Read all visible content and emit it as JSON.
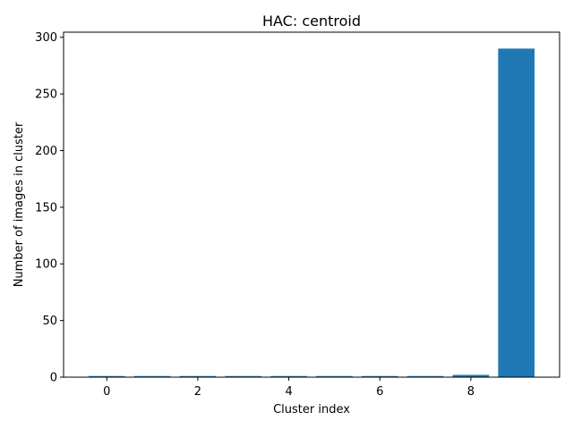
{
  "chart_data": {
    "type": "bar",
    "title": "HAC: centroid",
    "xlabel": "Cluster index",
    "ylabel": "Number of images in cluster",
    "x": [
      0,
      1,
      2,
      3,
      4,
      5,
      6,
      7,
      8,
      9
    ],
    "values": [
      1,
      1,
      1,
      1,
      1,
      1,
      1,
      1,
      2,
      290
    ],
    "xlim": [
      -0.95,
      9.95
    ],
    "ylim": [
      0,
      304.5
    ],
    "xticks": [
      0,
      2,
      4,
      6,
      8
    ],
    "yticks": [
      0,
      50,
      100,
      150,
      200,
      250,
      300
    ],
    "bar_width": 0.8,
    "bar_color": "#1f77b4",
    "grid": false,
    "legend": "none"
  }
}
